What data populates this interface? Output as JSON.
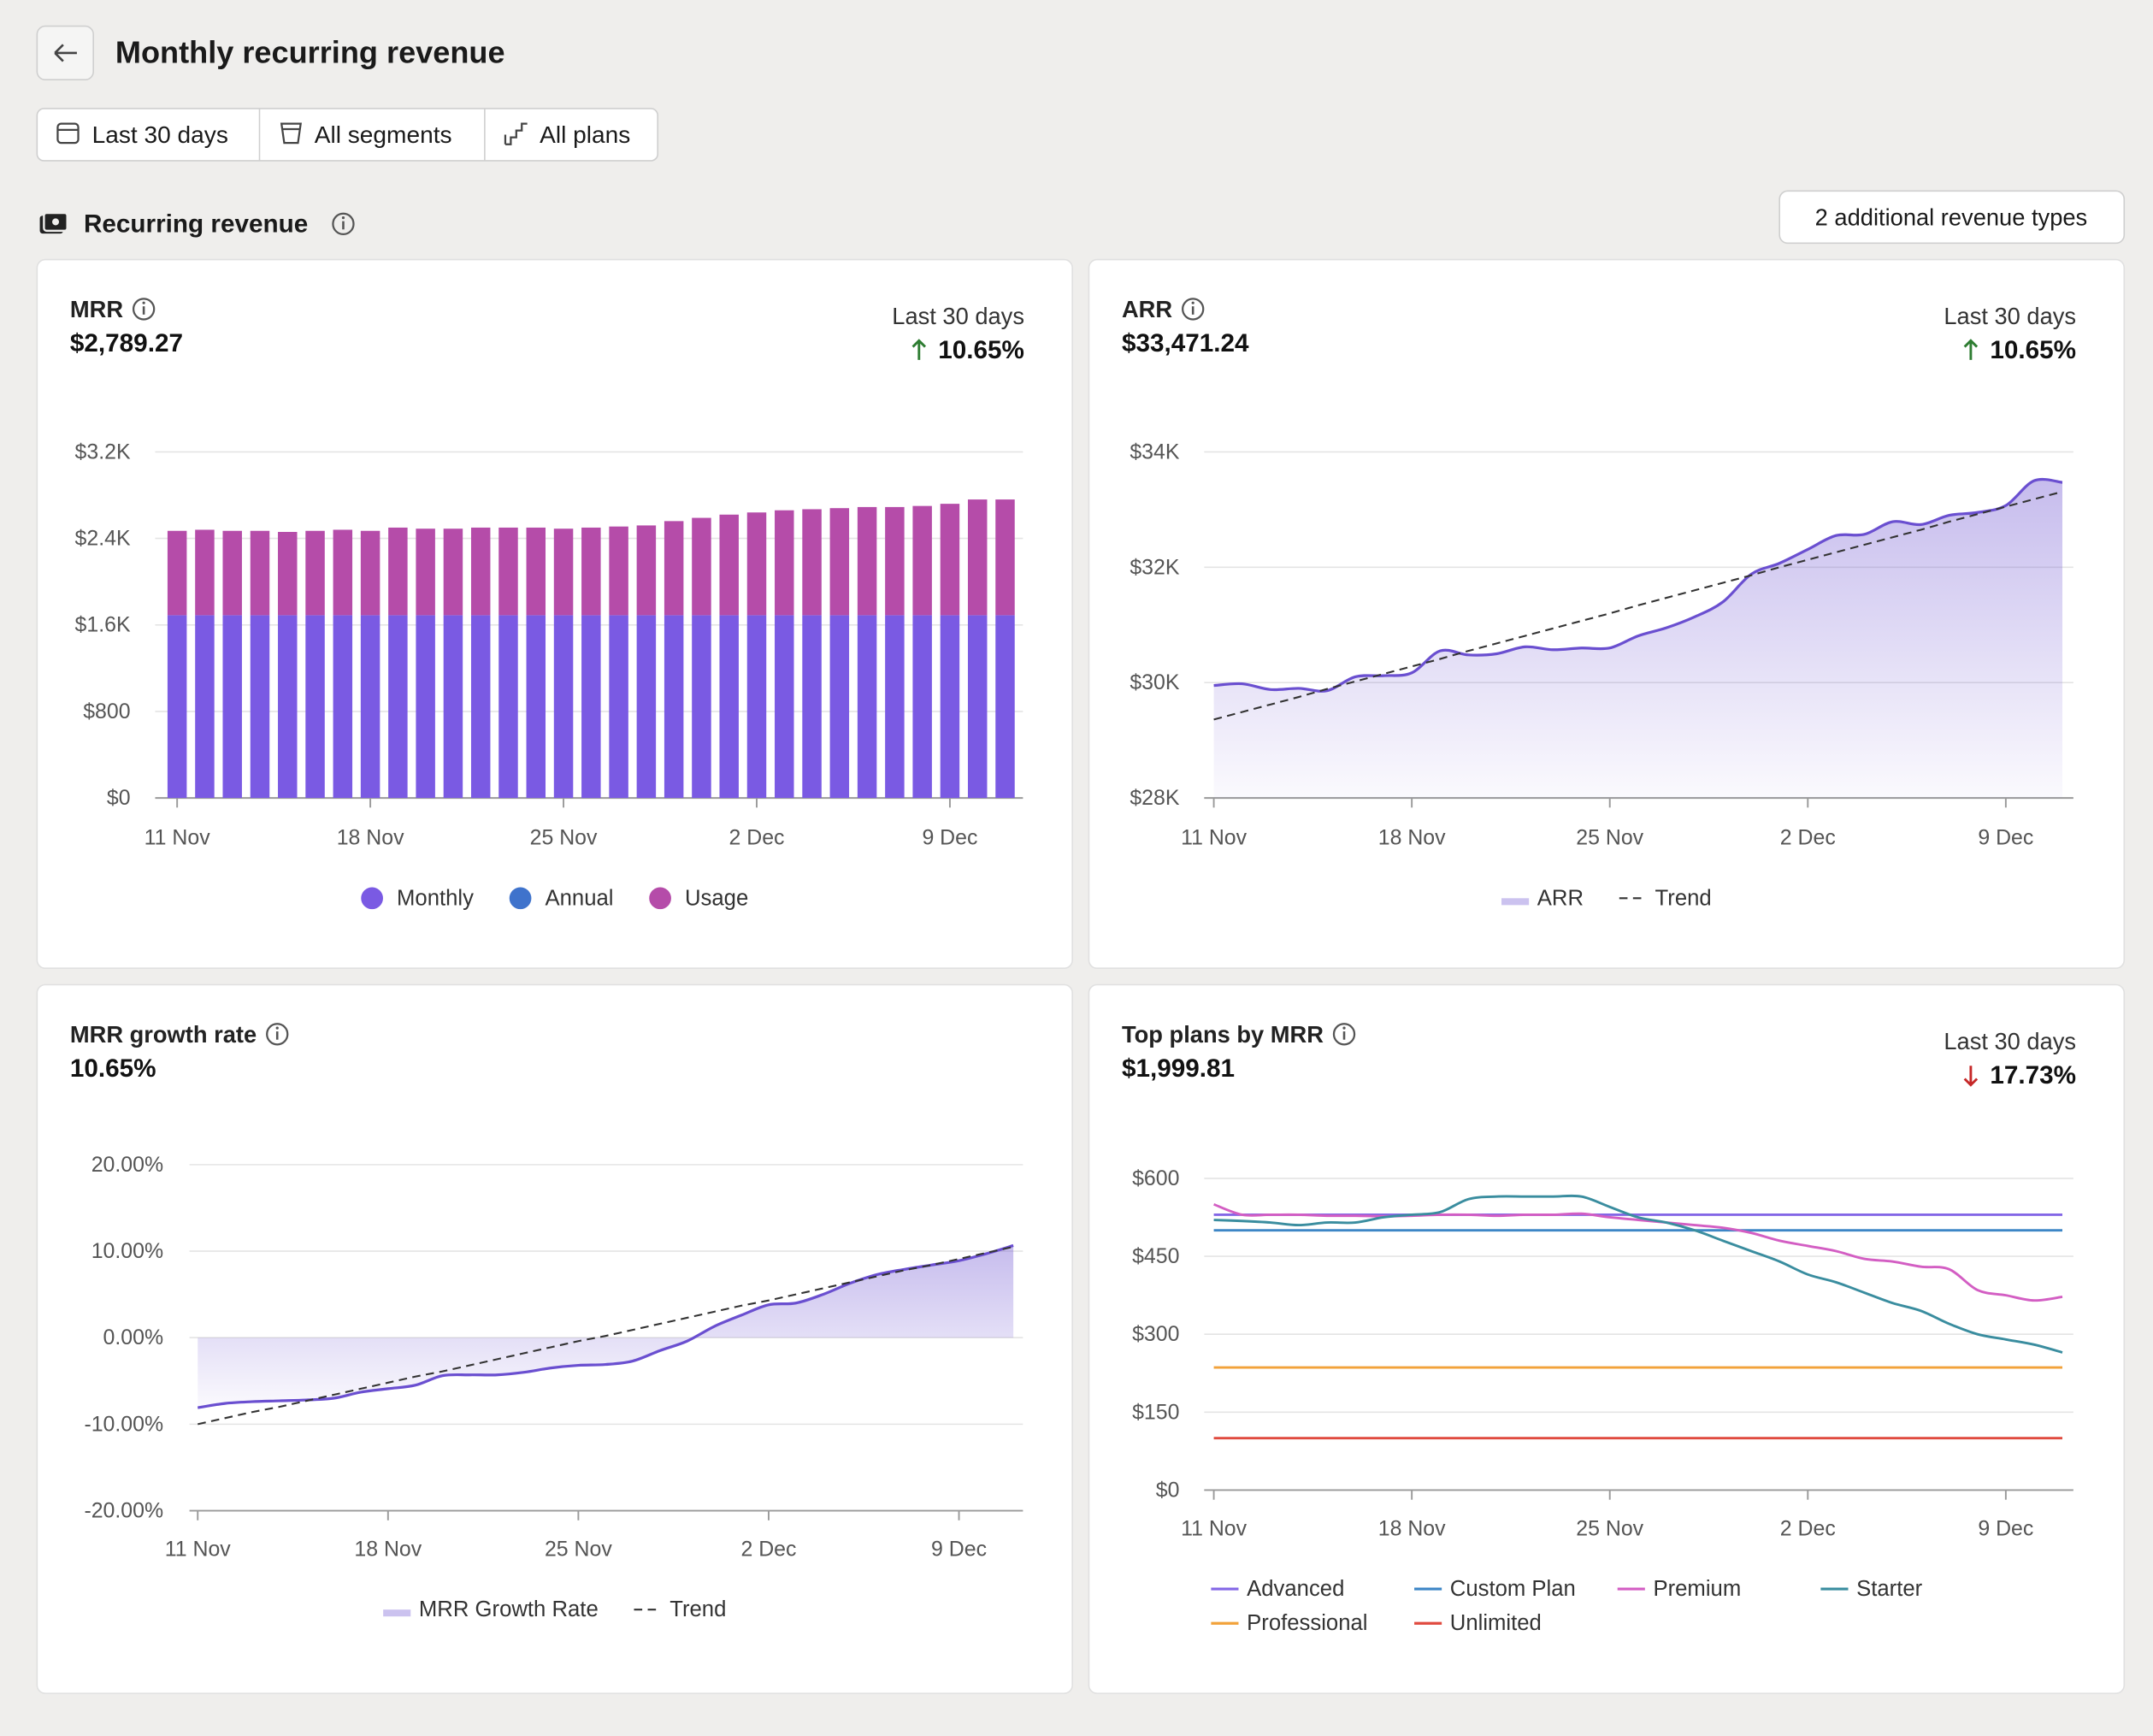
{
  "header": {
    "title": "Monthly recurring revenue",
    "filters": [
      "Last 30 days",
      "All segments",
      "All plans"
    ]
  },
  "section": {
    "title": "Recurring revenue",
    "button": "2 additional revenue types"
  },
  "chart_data": [
    {
      "type": "bar",
      "title": "MRR",
      "headline": "$2,789.27",
      "period": "Last 30 days",
      "change": "10.65%",
      "change_direction": "up",
      "categories": [
        "11 Nov",
        null,
        null,
        null,
        null,
        null,
        null,
        "18 Nov",
        null,
        null,
        null,
        null,
        null,
        null,
        "25 Nov",
        null,
        null,
        null,
        null,
        null,
        null,
        "2 Dec",
        null,
        null,
        null,
        null,
        null,
        null,
        "9 Dec",
        null,
        null
      ],
      "series": [
        {
          "name": "Monthly",
          "color": "#7a5ae3",
          "values": [
            1690,
            1690,
            1690,
            1690,
            1690,
            1690,
            1690,
            1690,
            1690,
            1690,
            1690,
            1690,
            1690,
            1690,
            1690,
            1690,
            1690,
            1690,
            1690,
            1690,
            1690,
            1690,
            1690,
            1690,
            1690,
            1690,
            1690,
            1690,
            1690,
            1690,
            1690
          ]
        },
        {
          "name": "Annual",
          "color": "#3f73cc",
          "values": [
            0,
            0,
            0,
            0,
            0,
            0,
            0,
            0,
            0,
            0,
            0,
            0,
            0,
            0,
            0,
            0,
            0,
            0,
            0,
            0,
            0,
            0,
            0,
            0,
            0,
            0,
            0,
            0,
            0,
            0,
            0
          ]
        },
        {
          "name": "Usage",
          "color": "#b54ca9",
          "values": [
            780,
            790,
            780,
            780,
            770,
            780,
            790,
            780,
            810,
            800,
            800,
            810,
            810,
            810,
            800,
            810,
            820,
            830,
            870,
            900,
            930,
            950,
            970,
            980,
            990,
            1000,
            1000,
            1010,
            1030,
            1070,
            1070
          ]
        }
      ],
      "ylim": [
        0,
        3200
      ],
      "yticks": [
        {
          "value": 0,
          "label": "$0"
        },
        {
          "value": 800,
          "label": "$800"
        },
        {
          "value": 1600,
          "label": "$1.6K"
        },
        {
          "value": 2400,
          "label": "$2.4K"
        },
        {
          "value": 3200,
          "label": "$3.2K"
        }
      ],
      "grid": true
    },
    {
      "type": "area",
      "title": "ARR",
      "headline": "$33,471.24",
      "period": "Last 30 days",
      "change": "10.65%",
      "change_direction": "up",
      "categories": [
        "11 Nov",
        null,
        null,
        null,
        null,
        null,
        null,
        "18 Nov",
        null,
        null,
        null,
        null,
        null,
        null,
        "25 Nov",
        null,
        null,
        null,
        null,
        null,
        null,
        "2 Dec",
        null,
        null,
        null,
        null,
        null,
        null,
        "9 Dec",
        null,
        null
      ],
      "series": [
        {
          "name": "ARR",
          "color": "#6a4fd0",
          "values": [
            29950,
            29980,
            29880,
            29900,
            29860,
            30100,
            30120,
            30170,
            30550,
            30480,
            30500,
            30620,
            30570,
            30600,
            30600,
            30810,
            30950,
            31140,
            31400,
            31880,
            32070,
            32310,
            32550,
            32570,
            32790,
            32740,
            32900,
            32950,
            33070,
            33500,
            33471
          ]
        },
        {
          "name": "Trend",
          "color": "#333333",
          "style": "dashed",
          "values": [
            29360,
            29490,
            29620,
            29750,
            29890,
            30020,
            30150,
            30280,
            30410,
            30550,
            30680,
            30810,
            30940,
            31070,
            31200,
            31340,
            31470,
            31600,
            31730,
            31860,
            32000,
            32130,
            32260,
            32390,
            32520,
            32650,
            32790,
            32920,
            33050,
            33180,
            33310
          ]
        }
      ],
      "ylim": [
        28000,
        34000
      ],
      "yticks": [
        {
          "value": 28000,
          "label": "$28K"
        },
        {
          "value": 30000,
          "label": "$30K"
        },
        {
          "value": 32000,
          "label": "$32K"
        },
        {
          "value": 34000,
          "label": "$34K"
        }
      ],
      "grid": true
    },
    {
      "type": "area",
      "title": "MRR growth rate",
      "headline": "10.65%",
      "categories": [
        "11 Nov",
        null,
        null,
        null,
        null,
        null,
        null,
        "18 Nov",
        null,
        null,
        null,
        null,
        null,
        null,
        "25 Nov",
        null,
        null,
        null,
        null,
        null,
        null,
        "2 Dec",
        null,
        null,
        null,
        null,
        null,
        null,
        "9 Dec",
        null,
        null
      ],
      "series": [
        {
          "name": "MRR Growth Rate",
          "color": "#6a4fd0",
          "values": [
            -8.1,
            -7.6,
            -7.4,
            -7.3,
            -7.2,
            -7.0,
            -6.3,
            -5.9,
            -5.5,
            -4.4,
            -4.3,
            -4.3,
            -4.0,
            -3.5,
            -3.2,
            -3.1,
            -2.7,
            -1.5,
            -0.4,
            1.3,
            2.6,
            3.8,
            4.0,
            5.0,
            6.3,
            7.3,
            7.9,
            8.4,
            8.9,
            9.7,
            10.65
          ]
        },
        {
          "name": "Trend",
          "color": "#333333",
          "style": "dashed",
          "values": [
            -10,
            -9.3,
            -8.6,
            -8.0,
            -7.3,
            -6.6,
            -5.9,
            -5.2,
            -4.5,
            -3.9,
            -3.2,
            -2.5,
            -1.8,
            -1.1,
            -0.4,
            0.2,
            0.9,
            1.6,
            2.3,
            3.0,
            3.7,
            4.3,
            5.0,
            5.7,
            6.4,
            7.1,
            7.8,
            8.4,
            9.1,
            9.8,
            10.5
          ]
        }
      ],
      "ylim": [
        -20,
        20
      ],
      "yticks": [
        {
          "value": -20,
          "label": "-20.00%"
        },
        {
          "value": -10,
          "label": "-10.00%"
        },
        {
          "value": 0,
          "label": "0.00%"
        },
        {
          "value": 10,
          "label": "10.00%"
        },
        {
          "value": 20,
          "label": "20.00%"
        }
      ],
      "grid": true
    },
    {
      "type": "line",
      "title": "Top plans by MRR",
      "headline": "$1,999.81",
      "period": "Last 30 days",
      "change": "17.73%",
      "change_direction": "down",
      "categories": [
        "11 Nov",
        null,
        null,
        null,
        null,
        null,
        null,
        "18 Nov",
        null,
        null,
        null,
        null,
        null,
        null,
        "25 Nov",
        null,
        null,
        null,
        null,
        null,
        null,
        "2 Dec",
        null,
        null,
        null,
        null,
        null,
        null,
        "9 Dec",
        null,
        null
      ],
      "series": [
        {
          "name": "Advanced",
          "color": "#8467e6",
          "values": [
            530,
            530,
            530,
            530,
            530,
            530,
            530,
            530,
            530,
            530,
            530,
            530,
            530,
            530,
            530,
            530,
            530,
            530,
            530,
            530,
            530,
            530,
            530,
            530,
            530,
            530,
            530,
            530,
            530,
            530,
            530
          ]
        },
        {
          "name": "Custom Plan",
          "color": "#3d86c6",
          "values": [
            500,
            500,
            500,
            500,
            500,
            500,
            500,
            500,
            500,
            500,
            500,
            500,
            500,
            500,
            500,
            500,
            500,
            500,
            500,
            500,
            500,
            500,
            500,
            500,
            500,
            500,
            500,
            500,
            500,
            500,
            500
          ]
        },
        {
          "name": "Premium",
          "color": "#d35ec3",
          "values": [
            550,
            530,
            530,
            530,
            528,
            528,
            527,
            528,
            530,
            530,
            528,
            530,
            530,
            532,
            525,
            520,
            515,
            510,
            505,
            495,
            480,
            470,
            460,
            445,
            440,
            430,
            425,
            385,
            375,
            365,
            372
          ]
        },
        {
          "name": "Starter",
          "color": "#3a8d9f",
          "values": [
            520,
            518,
            515,
            510,
            515,
            515,
            525,
            530,
            535,
            560,
            565,
            565,
            565,
            565,
            545,
            525,
            515,
            500,
            480,
            460,
            440,
            415,
            400,
            380,
            360,
            345,
            320,
            300,
            290,
            280,
            265
          ]
        },
        {
          "name": "Professional",
          "color": "#f2a23a",
          "values": [
            236,
            236,
            236,
            236,
            236,
            236,
            236,
            236,
            236,
            236,
            236,
            236,
            236,
            236,
            236,
            236,
            236,
            236,
            236,
            236,
            236,
            236,
            236,
            236,
            236,
            236,
            236,
            236,
            236,
            236,
            236
          ]
        },
        {
          "name": "Unlimited",
          "color": "#e04a3f",
          "values": [
            100,
            100,
            100,
            100,
            100,
            100,
            100,
            100,
            100,
            100,
            100,
            100,
            100,
            100,
            100,
            100,
            100,
            100,
            100,
            100,
            100,
            100,
            100,
            100,
            100,
            100,
            100,
            100,
            100,
            100,
            100
          ]
        }
      ],
      "ylim": [
        0,
        600
      ],
      "yticks": [
        {
          "value": 0,
          "label": "$0"
        },
        {
          "value": 150,
          "label": "$150"
        },
        {
          "value": 300,
          "label": "$300"
        },
        {
          "value": 450,
          "label": "$450"
        },
        {
          "value": 600,
          "label": "$600"
        }
      ],
      "grid": true
    }
  ]
}
